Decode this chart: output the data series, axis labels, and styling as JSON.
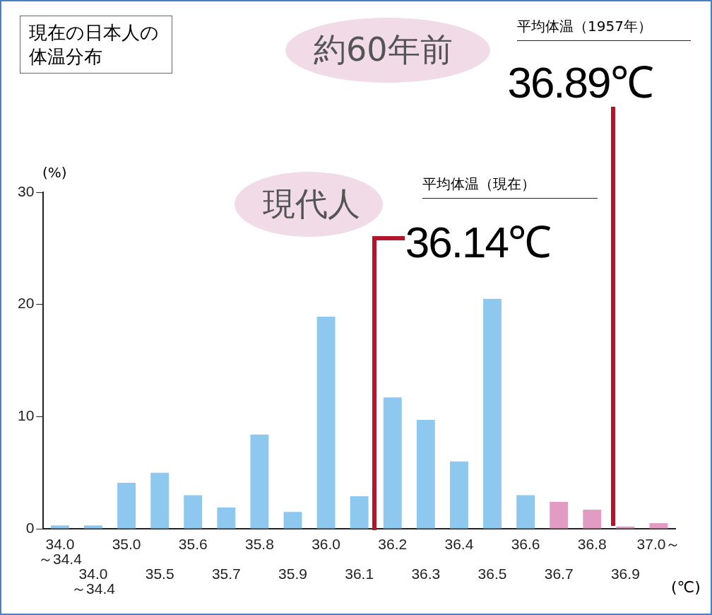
{
  "chart_data": {
    "type": "bar",
    "title": "現在の日本人の体温分布",
    "ylabel": "(%)",
    "xlabel": "(℃)",
    "categories": [
      "34.0\n～34.4",
      "34.0\n～34.4",
      "35.0",
      "35.5",
      "35.6",
      "35.7",
      "35.8",
      "35.9",
      "36.0",
      "36.1",
      "36.2",
      "36.3",
      "36.4",
      "36.5",
      "36.6",
      "36.7",
      "36.8",
      "36.9",
      "37.0～"
    ],
    "values": [
      0.3,
      0.3,
      4.1,
      5.0,
      3.0,
      1.9,
      8.4,
      1.5,
      18.9,
      2.9,
      11.7,
      9.7,
      6.0,
      20.5,
      3.0,
      2.4,
      1.7,
      0.2,
      0.5
    ],
    "colors": [
      "#8ec8ef",
      "#8ec8ef",
      "#8ec8ef",
      "#8ec8ef",
      "#8ec8ef",
      "#8ec8ef",
      "#8ec8ef",
      "#8ec8ef",
      "#8ec8ef",
      "#8ec8ef",
      "#8ec8ef",
      "#8ec8ef",
      "#8ec8ef",
      "#8ec8ef",
      "#8ec8ef",
      "#e29bc3",
      "#e29bc3",
      "#e29bc3",
      "#e29bc3"
    ],
    "ylim": [
      0,
      30
    ],
    "yticks": [
      0,
      10,
      20,
      30
    ],
    "grid": false,
    "legend": false,
    "annotations": [
      "現代人",
      "平均体温（現在）",
      "36.14℃",
      "約60年前",
      "平均体温（1957年）",
      "36.89℃"
    ]
  }
}
